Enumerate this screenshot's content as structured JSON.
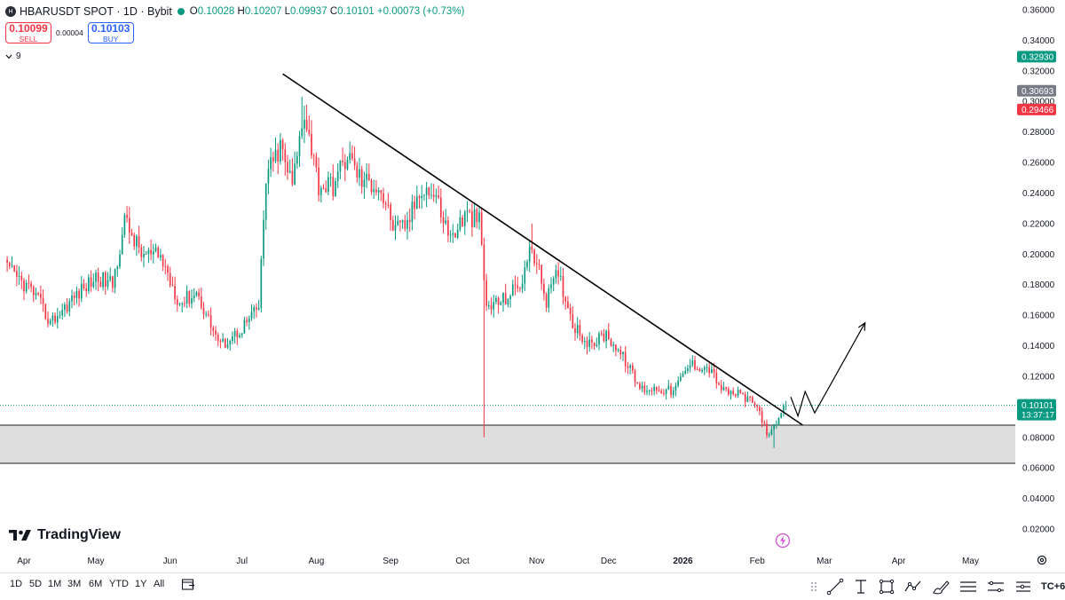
{
  "header": {
    "symbol_title": "HBARUSDT SPOT · 1D · Bybit",
    "logo_text": "H",
    "ohlc": {
      "o_key": "O",
      "o": "0.10028",
      "h_key": "H",
      "h": "0.10207",
      "l_key": "L",
      "l": "0.09937",
      "c_key": "C",
      "c": "0.10101",
      "change": "+0.00073 (+0.73%)"
    }
  },
  "trade": {
    "sell_price": "0.10099",
    "sell_label": "SELL",
    "spread": "0.00004",
    "buy_price": "0.10103",
    "buy_label": "BUY"
  },
  "indicators": {
    "count": "9"
  },
  "brand": {
    "name": "TradingView"
  },
  "timeframes": [
    "1D",
    "5D",
    "1M",
    "3M",
    "6M",
    "YTD",
    "1Y",
    "All"
  ],
  "timezone": "TC+6",
  "colors": {
    "up": "#089981",
    "down": "#f23645",
    "price_line": "#089981",
    "zone_fill": "#dedede",
    "trendline": "#000000"
  },
  "icons": [
    "logo-icon",
    "chevron-down-icon",
    "trend-line-icon",
    "text-cursor-icon",
    "rectangle-icon",
    "pattern-icon",
    "brush-icon",
    "fib-icon",
    "measure-icon",
    "compare-icon",
    "settings-icon"
  ],
  "chart_data": {
    "type": "candlestick",
    "symbol": "HBARUSDT",
    "interval": "1D",
    "y_axis_ticks": [
      "0.36000",
      "0.34000",
      "0.32000",
      "0.30000",
      "0.28000",
      "0.26000",
      "0.24000",
      "0.22000",
      "0.20000",
      "0.18000",
      "0.16000",
      "0.14000",
      "0.12000",
      "0.10000",
      "0.08000",
      "0.06000",
      "0.04000",
      "0.02000"
    ],
    "ylim": [
      0.013,
      0.367
    ],
    "x_axis_labels": [
      "Apr",
      "May",
      "Jun",
      "Jul",
      "Aug",
      "Sep",
      "Oct",
      "Nov",
      "Dec",
      "2026",
      "Feb",
      "Mar",
      "Apr",
      "May"
    ],
    "price_badges": [
      {
        "value": "0.32930",
        "color": "#089981"
      },
      {
        "value": "0.30693",
        "color": "#787b86"
      },
      {
        "value": "0.29466",
        "color": "#f23645"
      }
    ],
    "last_price": {
      "value": "0.10101",
      "countdown": "13:37:17"
    },
    "support_zone": [
      0.063,
      0.088
    ],
    "trendline": [
      {
        "date": "2025-07-18",
        "price": 0.318
      },
      {
        "date": "2026-02-20",
        "price": 0.088
      }
    ],
    "projection_path": [
      {
        "date": "2026-02-15",
        "price": 0.1065
      },
      {
        "date": "2026-02-18",
        "price": 0.094
      },
      {
        "date": "2026-02-21",
        "price": 0.11
      },
      {
        "date": "2026-02-25",
        "price": 0.096
      },
      {
        "date": "2026-03-18",
        "price": 0.155
      }
    ],
    "close_anchors": [
      {
        "date": "2025-03-25",
        "price": 0.19
      },
      {
        "date": "2025-04-05",
        "price": 0.175
      },
      {
        "date": "2025-04-12",
        "price": 0.155
      },
      {
        "date": "2025-04-22",
        "price": 0.172
      },
      {
        "date": "2025-05-01",
        "price": 0.185
      },
      {
        "date": "2025-05-08",
        "price": 0.18
      },
      {
        "date": "2025-05-13",
        "price": 0.222
      },
      {
        "date": "2025-05-20",
        "price": 0.2
      },
      {
        "date": "2025-05-28",
        "price": 0.198
      },
      {
        "date": "2025-06-05",
        "price": 0.168
      },
      {
        "date": "2025-06-12",
        "price": 0.175
      },
      {
        "date": "2025-06-22",
        "price": 0.14
      },
      {
        "date": "2025-06-30",
        "price": 0.15
      },
      {
        "date": "2025-07-08",
        "price": 0.165
      },
      {
        "date": "2025-07-11",
        "price": 0.25
      },
      {
        "date": "2025-07-17",
        "price": 0.27
      },
      {
        "date": "2025-07-22",
        "price": 0.245
      },
      {
        "date": "2025-07-27",
        "price": 0.295
      },
      {
        "date": "2025-08-02",
        "price": 0.245
      },
      {
        "date": "2025-08-08",
        "price": 0.245
      },
      {
        "date": "2025-08-14",
        "price": 0.265
      },
      {
        "date": "2025-08-20",
        "price": 0.248
      },
      {
        "date": "2025-08-27",
        "price": 0.245
      },
      {
        "date": "2025-09-03",
        "price": 0.215
      },
      {
        "date": "2025-09-08",
        "price": 0.22
      },
      {
        "date": "2025-09-14",
        "price": 0.245
      },
      {
        "date": "2025-09-20",
        "price": 0.237
      },
      {
        "date": "2025-09-26",
        "price": 0.21
      },
      {
        "date": "2025-10-02",
        "price": 0.225
      },
      {
        "date": "2025-10-08",
        "price": 0.222
      },
      {
        "date": "2025-10-11",
        "price": 0.165
      },
      {
        "date": "2025-10-18",
        "price": 0.17
      },
      {
        "date": "2025-10-25",
        "price": 0.18
      },
      {
        "date": "2025-10-30",
        "price": 0.205
      },
      {
        "date": "2025-11-05",
        "price": 0.17
      },
      {
        "date": "2025-11-10",
        "price": 0.188
      },
      {
        "date": "2025-11-16",
        "price": 0.155
      },
      {
        "date": "2025-11-23",
        "price": 0.14
      },
      {
        "date": "2025-11-30",
        "price": 0.148
      },
      {
        "date": "2025-12-08",
        "price": 0.13
      },
      {
        "date": "2025-12-14",
        "price": 0.112
      },
      {
        "date": "2025-12-22",
        "price": 0.112
      },
      {
        "date": "2025-12-28",
        "price": 0.11
      },
      {
        "date": "2026-01-04",
        "price": 0.128
      },
      {
        "date": "2026-01-12",
        "price": 0.125
      },
      {
        "date": "2026-01-18",
        "price": 0.11
      },
      {
        "date": "2026-01-25",
        "price": 0.108
      },
      {
        "date": "2026-02-01",
        "price": 0.1
      },
      {
        "date": "2026-02-06",
        "price": 0.08
      },
      {
        "date": "2026-02-10",
        "price": 0.092
      },
      {
        "date": "2026-02-13",
        "price": 0.101
      }
    ]
  }
}
